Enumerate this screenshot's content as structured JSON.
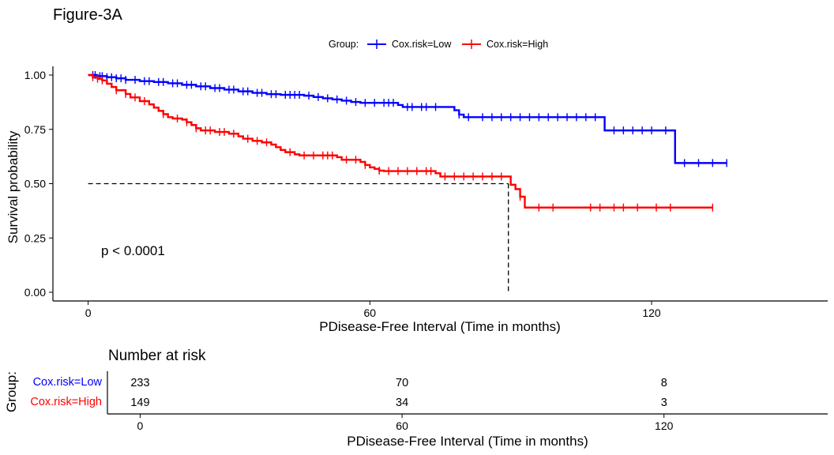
{
  "figure_title": "Figure-3A",
  "chart_data": [
    {
      "type": "line",
      "subtype": "kaplan-meier",
      "title": "",
      "xlabel": "PDisease-Free Interval (Time in months)",
      "ylabel": "Survival probability",
      "xlim": [
        -7.5,
        157.5
      ],
      "ylim": [
        -0.04,
        1.04
      ],
      "x_ticks": [
        0,
        60,
        120
      ],
      "y_ticks": [
        "0.00",
        "0.25",
        "0.50",
        "0.75",
        "1.00"
      ],
      "grid": false,
      "legend": {
        "title": "Group:",
        "placement": "top"
      },
      "annotation": "p < 0.0001",
      "median_line": {
        "y": 0.5,
        "x": 89.5,
        "style": "dashed"
      },
      "series": [
        {
          "name": "Cox.risk=Low",
          "color": "#0000ff",
          "steps": [
            [
              0,
              1.0
            ],
            [
              2,
              0.995
            ],
            [
              4,
              0.99
            ],
            [
              6,
              0.985
            ],
            [
              8,
              0.978
            ],
            [
              11,
              0.972
            ],
            [
              14,
              0.968
            ],
            [
              17,
              0.962
            ],
            [
              20,
              0.955
            ],
            [
              23,
              0.948
            ],
            [
              26,
              0.94
            ],
            [
              29,
              0.933
            ],
            [
              32,
              0.925
            ],
            [
              35,
              0.918
            ],
            [
              38,
              0.912
            ],
            [
              41,
              0.909
            ],
            [
              46,
              0.905
            ],
            [
              48,
              0.899
            ],
            [
              50,
              0.893
            ],
            [
              52,
              0.888
            ],
            [
              54,
              0.882
            ],
            [
              56,
              0.876
            ],
            [
              58,
              0.872
            ],
            [
              60,
              0.872
            ],
            [
              66,
              0.862
            ],
            [
              67,
              0.853
            ],
            [
              70,
              0.853
            ],
            [
              78,
              0.838
            ],
            [
              79,
              0.818
            ],
            [
              80,
              0.806
            ],
            [
              82,
              0.806
            ],
            [
              109,
              0.806
            ],
            [
              110,
              0.745
            ],
            [
              124,
              0.745
            ],
            [
              125,
              0.595
            ],
            [
              136,
              0.595
            ]
          ],
          "censor_x": [
            1,
            1.5,
            2.5,
            3,
            4,
            5,
            6,
            7,
            8,
            10,
            12,
            13,
            15,
            16,
            18,
            19,
            21,
            22,
            24,
            25,
            27,
            28,
            30,
            31,
            33,
            34,
            36,
            37,
            39,
            40,
            42,
            43,
            44,
            45,
            47,
            49,
            51,
            53,
            55,
            57,
            59,
            61,
            63,
            64,
            65,
            68,
            69,
            71,
            72,
            74,
            79,
            81,
            84,
            86,
            88,
            90,
            92,
            94,
            96,
            98,
            100,
            102,
            104,
            106,
            108,
            112,
            114,
            116,
            118,
            120,
            123,
            127,
            130,
            133,
            136
          ]
        },
        {
          "name": "Cox.risk=High",
          "color": "#ff0000",
          "steps": [
            [
              0,
              1.0
            ],
            [
              1,
              0.99
            ],
            [
              2,
              0.983
            ],
            [
              3,
              0.975
            ],
            [
              4,
              0.96
            ],
            [
              5,
              0.945
            ],
            [
              6,
              0.93
            ],
            [
              8,
              0.913
            ],
            [
              9,
              0.897
            ],
            [
              11,
              0.88
            ],
            [
              13,
              0.865
            ],
            [
              14,
              0.85
            ],
            [
              15,
              0.835
            ],
            [
              16,
              0.82
            ],
            [
              17,
              0.806
            ],
            [
              18,
              0.8
            ],
            [
              20,
              0.795
            ],
            [
              21,
              0.783
            ],
            [
              22,
              0.77
            ],
            [
              23,
              0.755
            ],
            [
              24,
              0.745
            ],
            [
              27,
              0.738
            ],
            [
              30,
              0.73
            ],
            [
              32,
              0.718
            ],
            [
              33,
              0.707
            ],
            [
              35,
              0.697
            ],
            [
              37,
              0.69
            ],
            [
              39,
              0.68
            ],
            [
              40,
              0.668
            ],
            [
              41,
              0.655
            ],
            [
              42,
              0.645
            ],
            [
              44,
              0.635
            ],
            [
              45,
              0.63
            ],
            [
              53,
              0.622
            ],
            [
              54,
              0.61
            ],
            [
              58,
              0.6
            ],
            [
              59,
              0.586
            ],
            [
              60,
              0.575
            ],
            [
              61,
              0.568
            ],
            [
              62,
              0.56
            ],
            [
              63,
              0.558
            ],
            [
              74,
              0.548
            ],
            [
              75,
              0.533
            ],
            [
              89,
              0.533
            ],
            [
              90,
              0.495
            ],
            [
              91,
              0.475
            ],
            [
              92,
              0.44
            ],
            [
              93,
              0.39
            ],
            [
              133,
              0.39
            ]
          ],
          "censor_x": [
            1,
            2,
            3,
            6,
            8,
            10,
            12,
            16,
            19,
            21,
            23,
            25,
            26,
            28,
            29,
            31,
            34,
            36,
            38,
            43,
            46,
            48,
            50,
            51,
            52,
            55,
            57,
            59,
            62,
            64,
            66,
            68,
            70,
            72,
            73,
            76,
            78,
            80,
            82,
            84,
            86,
            88,
            92,
            96,
            99,
            107,
            109,
            112,
            114,
            117,
            121,
            124,
            133
          ]
        }
      ]
    },
    {
      "type": "table",
      "title": "Number at risk",
      "row_axis_label": "Group:",
      "xlabel": "PDisease-Free Interval (Time in months)",
      "x_ticks": [
        0,
        60,
        120
      ],
      "rows": [
        {
          "name": "Cox.risk=Low",
          "color": "#0000ff",
          "values": [
            "233",
            "70",
            "8"
          ]
        },
        {
          "name": "Cox.risk=High",
          "color": "#ff0000",
          "values": [
            "149",
            "34",
            "3"
          ]
        }
      ]
    }
  ]
}
